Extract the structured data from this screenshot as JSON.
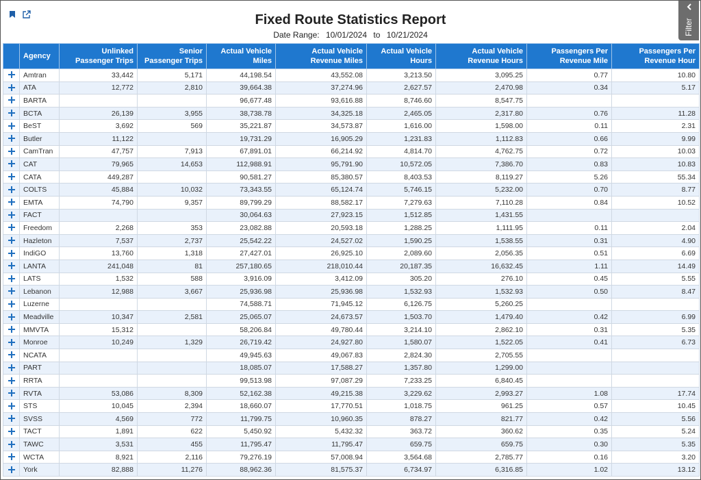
{
  "header": {
    "title": "Fixed Route Statistics Report",
    "date_label": "Date Range:",
    "start_date": "10/01/2024",
    "separator": "to",
    "end_date": "10/21/2024"
  },
  "filter_tab": "Filter",
  "table": {
    "columns": [
      "Agency",
      "Unlinked Passenger Trips",
      "Senior Passenger Trips",
      "Actual Vehicle Miles",
      "Actual Vehicle Revenue Miles",
      "Actual Vehicle Hours",
      "Actual Vehicle Revenue Hours",
      "Passengers Per Revenue Mile",
      "Passengers Per Revenue Hour"
    ],
    "rows": [
      [
        "Amtran",
        "33,442",
        "5,171",
        "44,198.54",
        "43,552.08",
        "3,213.50",
        "3,095.25",
        "0.77",
        "10.80"
      ],
      [
        "ATA",
        "12,772",
        "2,810",
        "39,664.38",
        "37,274.96",
        "2,627.57",
        "2,470.98",
        "0.34",
        "5.17"
      ],
      [
        "BARTA",
        null,
        null,
        "96,677.48",
        "93,616.88",
        "8,746.60",
        "8,547.75",
        null,
        null
      ],
      [
        "BCTA",
        "26,139",
        "3,955",
        "38,738.78",
        "34,325.18",
        "2,465.05",
        "2,317.80",
        "0.76",
        "11.28"
      ],
      [
        "BeST",
        "3,692",
        "569",
        "35,221.87",
        "34,573.87",
        "1,616.00",
        "1,598.00",
        "0.11",
        "2.31"
      ],
      [
        "Butler",
        "11,122",
        null,
        "19,731.29",
        "16,905.29",
        "1,231.83",
        "1,112.83",
        "0.66",
        "9.99"
      ],
      [
        "CamTran",
        "47,757",
        "7,913",
        "67,891.01",
        "66,214.92",
        "4,814.70",
        "4,762.75",
        "0.72",
        "10.03"
      ],
      [
        "CAT",
        "79,965",
        "14,653",
        "112,988.91",
        "95,791.90",
        "10,572.05",
        "7,386.70",
        "0.83",
        "10.83"
      ],
      [
        "CATA",
        "449,287",
        null,
        "90,581.27",
        "85,380.57",
        "8,403.53",
        "8,119.27",
        "5.26",
        "55.34"
      ],
      [
        "COLTS",
        "45,884",
        "10,032",
        "73,343.55",
        "65,124.74",
        "5,746.15",
        "5,232.00",
        "0.70",
        "8.77"
      ],
      [
        "EMTA",
        "74,790",
        "9,357",
        "89,799.29",
        "88,582.17",
        "7,279.63",
        "7,110.28",
        "0.84",
        "10.52"
      ],
      [
        "FACT",
        null,
        null,
        "30,064.63",
        "27,923.15",
        "1,512.85",
        "1,431.55",
        null,
        null
      ],
      [
        "Freedom",
        "2,268",
        "353",
        "23,082.88",
        "20,593.18",
        "1,288.25",
        "1,111.95",
        "0.11",
        "2.04"
      ],
      [
        "Hazleton",
        "7,537",
        "2,737",
        "25,542.22",
        "24,527.02",
        "1,590.25",
        "1,538.55",
        "0.31",
        "4.90"
      ],
      [
        "IndiGO",
        "13,760",
        "1,318",
        "27,427.01",
        "26,925.10",
        "2,089.60",
        "2,056.35",
        "0.51",
        "6.69"
      ],
      [
        "LANTA",
        "241,048",
        "81",
        "257,180.65",
        "218,010.44",
        "20,187.35",
        "16,632.45",
        "1.11",
        "14.49"
      ],
      [
        "LATS",
        "1,532",
        "588",
        "3,916.09",
        "3,412.09",
        "305.20",
        "276.10",
        "0.45",
        "5.55"
      ],
      [
        "Lebanon",
        "12,988",
        "3,667",
        "25,936.98",
        "25,936.98",
        "1,532.93",
        "1,532.93",
        "0.50",
        "8.47"
      ],
      [
        "Luzerne",
        null,
        null,
        "74,588.71",
        "71,945.12",
        "6,126.75",
        "5,260.25",
        null,
        null
      ],
      [
        "Meadville",
        "10,347",
        "2,581",
        "25,065.07",
        "24,673.57",
        "1,503.70",
        "1,479.40",
        "0.42",
        "6.99"
      ],
      [
        "MMVTA",
        "15,312",
        null,
        "58,206.84",
        "49,780.44",
        "3,214.10",
        "2,862.10",
        "0.31",
        "5.35"
      ],
      [
        "Monroe",
        "10,249",
        "1,329",
        "26,719.42",
        "24,927.80",
        "1,580.07",
        "1,522.05",
        "0.41",
        "6.73"
      ],
      [
        "NCATA",
        null,
        null,
        "49,945.63",
        "49,067.83",
        "2,824.30",
        "2,705.55",
        null,
        null
      ],
      [
        "PART",
        null,
        null,
        "18,085.07",
        "17,588.27",
        "1,357.80",
        "1,299.00",
        null,
        null
      ],
      [
        "RRTA",
        null,
        null,
        "99,513.98",
        "97,087.29",
        "7,233.25",
        "6,840.45",
        null,
        null
      ],
      [
        "RVTA",
        "53,086",
        "8,309",
        "52,162.38",
        "49,215.38",
        "3,229.62",
        "2,993.27",
        "1.08",
        "17.74"
      ],
      [
        "STS",
        "10,045",
        "2,394",
        "18,660.07",
        "17,770.51",
        "1,018.75",
        "961.25",
        "0.57",
        "10.45"
      ],
      [
        "SVSS",
        "4,569",
        "772",
        "11,799.75",
        "10,960.35",
        "878.27",
        "821.77",
        "0.42",
        "5.56"
      ],
      [
        "TACT",
        "1,891",
        "622",
        "5,450.92",
        "5,432.32",
        "363.72",
        "360.62",
        "0.35",
        "5.24"
      ],
      [
        "TAWC",
        "3,531",
        "455",
        "11,795.47",
        "11,795.47",
        "659.75",
        "659.75",
        "0.30",
        "5.35"
      ],
      [
        "WCTA",
        "8,921",
        "2,116",
        "79,276.19",
        "57,008.94",
        "3,564.68",
        "2,785.77",
        "0.16",
        "3.20"
      ],
      [
        "York",
        "82,888",
        "11,276",
        "88,962.36",
        "81,575.37",
        "6,734.97",
        "6,316.85",
        "1.02",
        "13.12"
      ]
    ]
  }
}
